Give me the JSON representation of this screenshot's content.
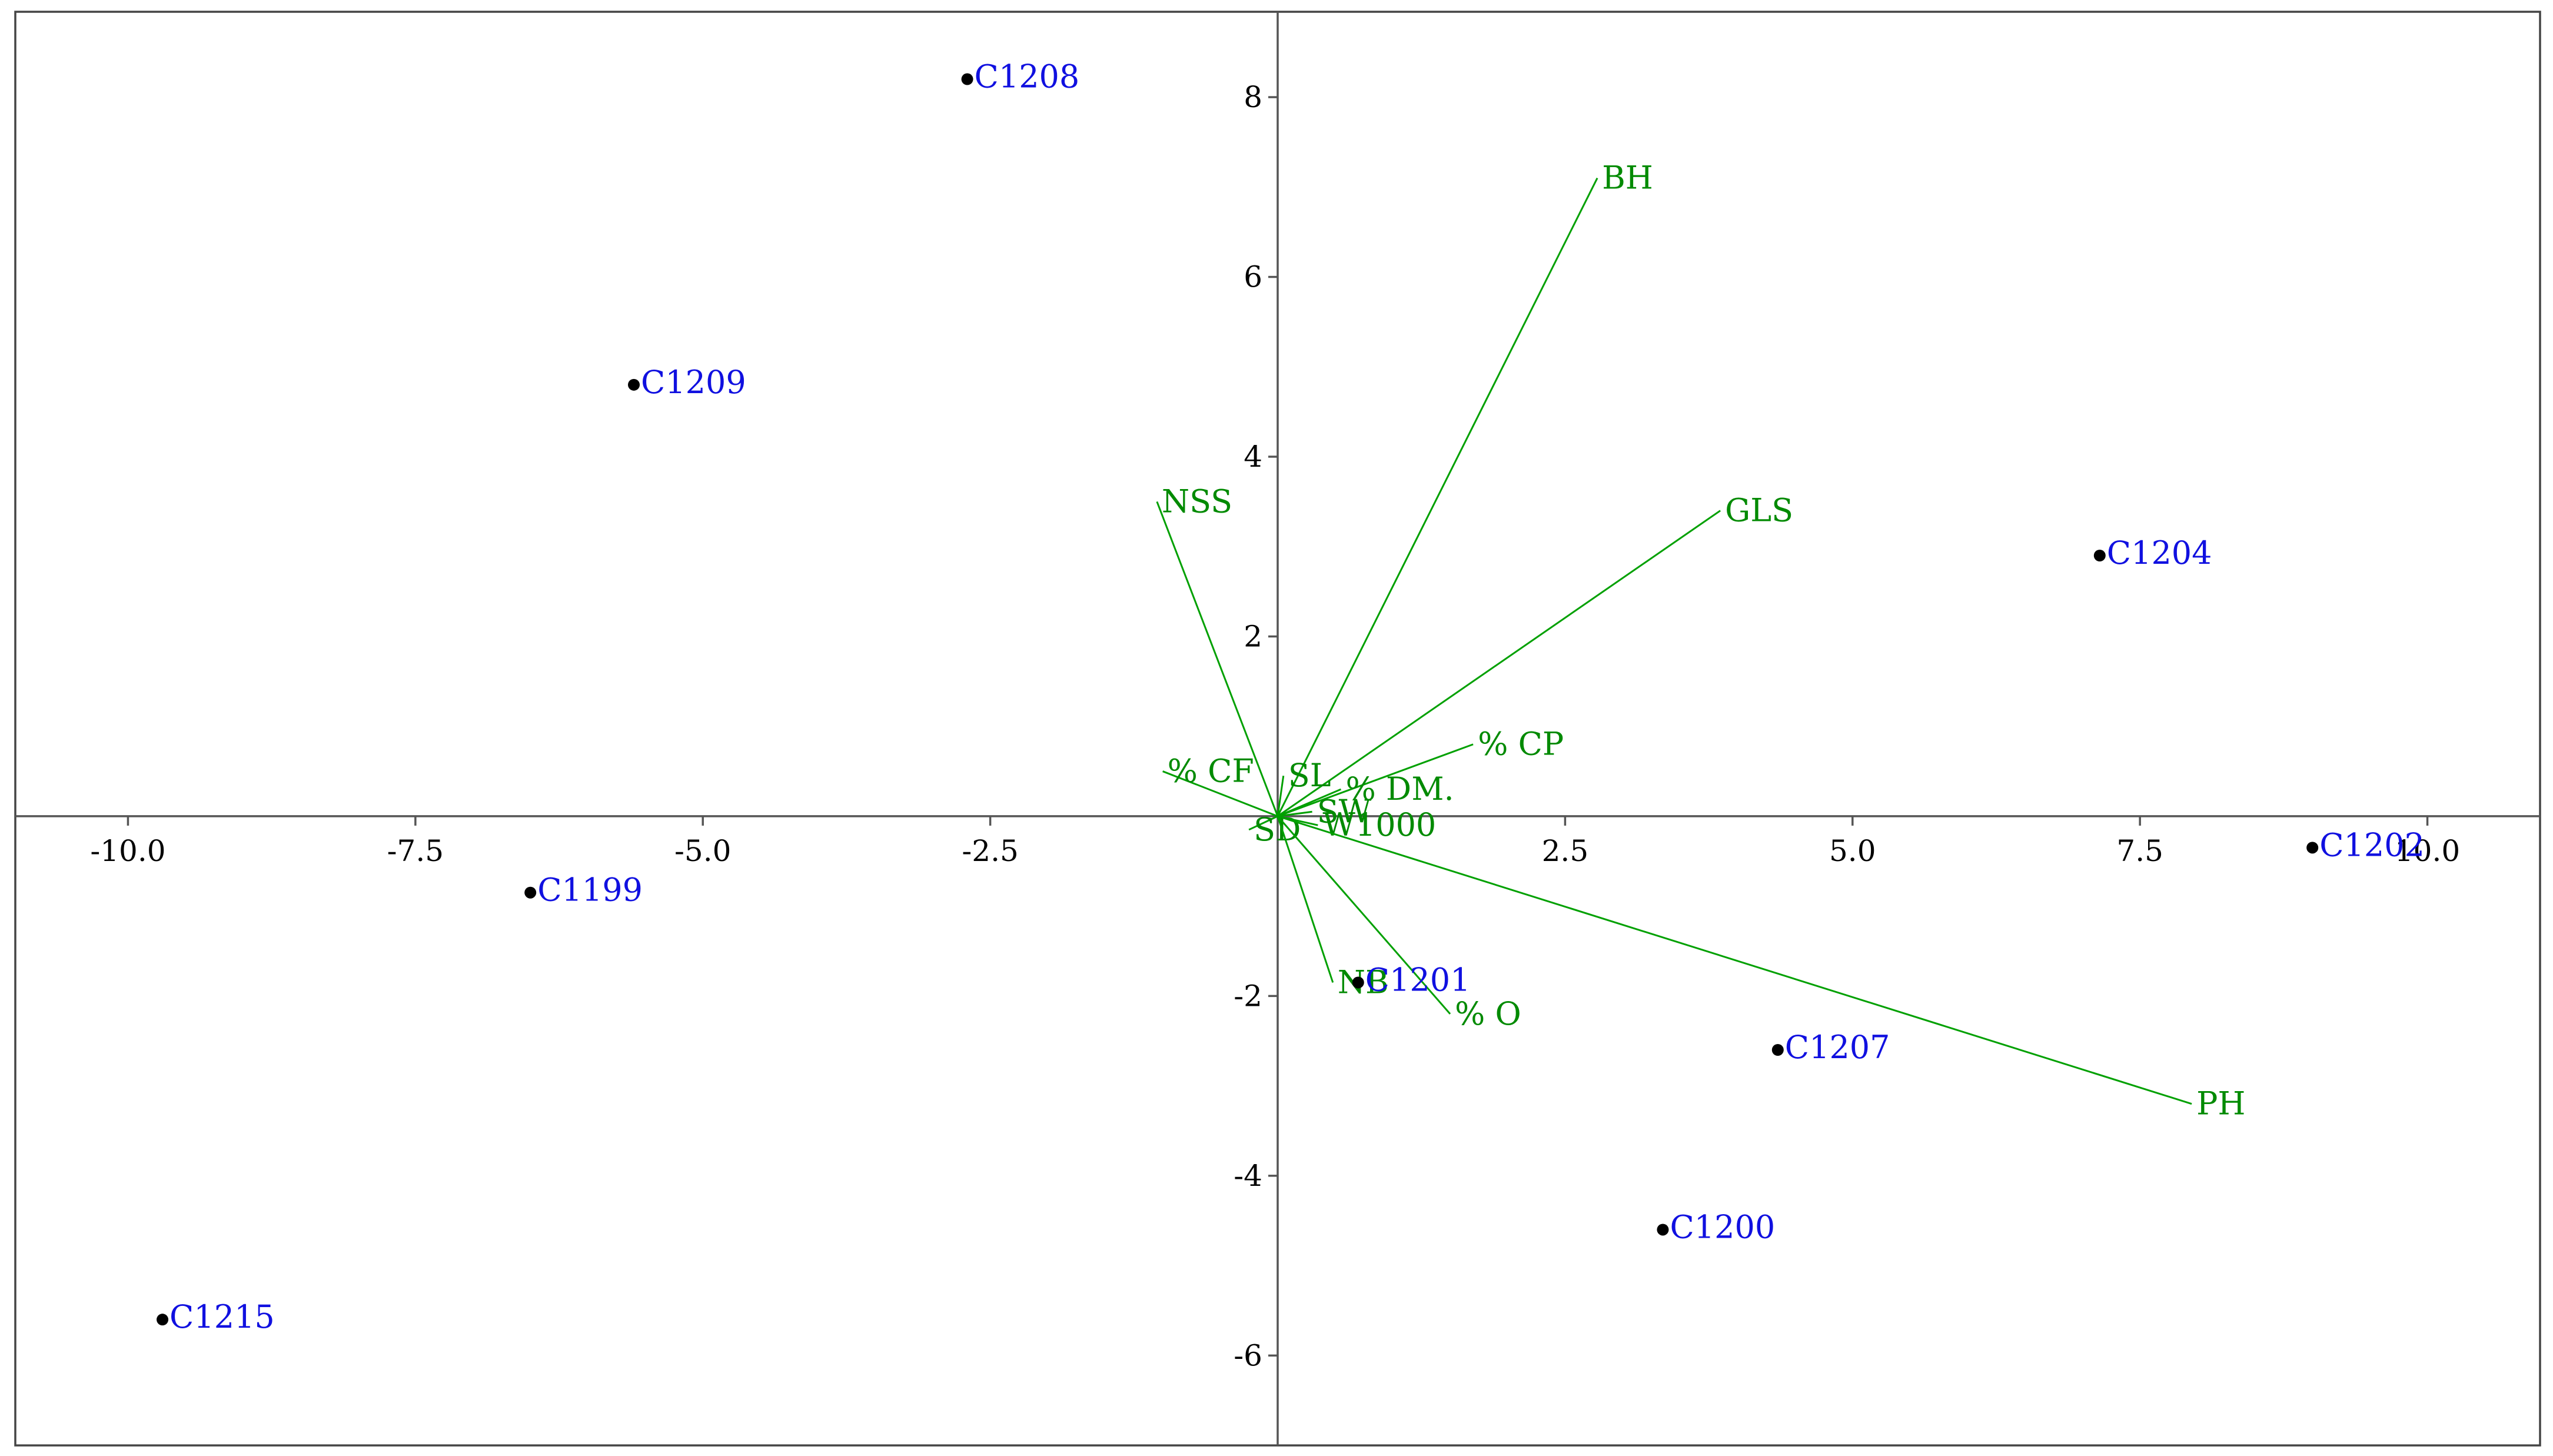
{
  "chart_data": {
    "type": "scatter",
    "title": "",
    "xlabel": "",
    "ylabel": "",
    "xlim": [
      -10.98,
      10.98
    ],
    "ylim": [
      -7.0,
      8.95
    ],
    "grid": false,
    "legend": "none",
    "colors": {
      "points": "#000000",
      "point_labels": "#1010e0",
      "vectors": "#00a000",
      "vector_labels": "#008a00",
      "axes": "#555555"
    },
    "x_ticks": [
      {
        "value": -10.0,
        "label": "-10.0"
      },
      {
        "value": -7.5,
        "label": "-7.5"
      },
      {
        "value": -5.0,
        "label": "-5.0"
      },
      {
        "value": -2.5,
        "label": "-2.5"
      },
      {
        "value": 2.5,
        "label": "2.5"
      },
      {
        "value": 5.0,
        "label": "5.0"
      },
      {
        "value": 7.5,
        "label": "7.5"
      },
      {
        "value": 10.0,
        "label": "10.0"
      }
    ],
    "y_ticks": [
      {
        "value": 8,
        "label": "8"
      },
      {
        "value": 6,
        "label": "6"
      },
      {
        "value": 4,
        "label": "4"
      },
      {
        "value": 2,
        "label": "2"
      },
      {
        "value": -2,
        "label": "-2"
      },
      {
        "value": -4,
        "label": "-4"
      },
      {
        "value": -6,
        "label": "-6"
      }
    ],
    "points": [
      {
        "label": "C1208",
        "x": -2.7,
        "y": 8.2
      },
      {
        "label": "C1209",
        "x": -5.6,
        "y": 4.8
      },
      {
        "label": "C1204",
        "x": 7.15,
        "y": 2.9
      },
      {
        "label": "C1202",
        "x": 9.0,
        "y": -0.35
      },
      {
        "label": "C1199",
        "x": -6.5,
        "y": -0.85
      },
      {
        "label": "C1201",
        "x": 0.7,
        "y": -1.85
      },
      {
        "label": "C1207",
        "x": 4.35,
        "y": -2.6
      },
      {
        "label": "C1200",
        "x": 3.35,
        "y": -4.6
      },
      {
        "label": "C1215",
        "x": -9.7,
        "y": -5.6
      }
    ],
    "vectors": [
      {
        "label": "BH",
        "x": 2.78,
        "y": 7.1
      },
      {
        "label": "GLS",
        "x": 3.85,
        "y": 3.4
      },
      {
        "label": "NSS",
        "x": -1.05,
        "y": 3.5
      },
      {
        "label": "% CP",
        "x": 1.7,
        "y": 0.8
      },
      {
        "label": "% CF",
        "x": -1.0,
        "y": 0.5
      },
      {
        "label": "SL",
        "x": 0.05,
        "y": 0.45
      },
      {
        "label": "% DM.",
        "x": 0.55,
        "y": 0.3
      },
      {
        "label": "SD",
        "x": -0.25,
        "y": -0.15
      },
      {
        "label": "SW",
        "x": 0.3,
        "y": 0.05
      },
      {
        "label": "W1000",
        "x": 0.35,
        "y": -0.1
      },
      {
        "label": "NB",
        "x": 0.48,
        "y": -1.85
      },
      {
        "label": "% O",
        "x": 1.5,
        "y": -2.2
      },
      {
        "label": "PH",
        "x": 7.95,
        "y": -3.2
      }
    ]
  }
}
